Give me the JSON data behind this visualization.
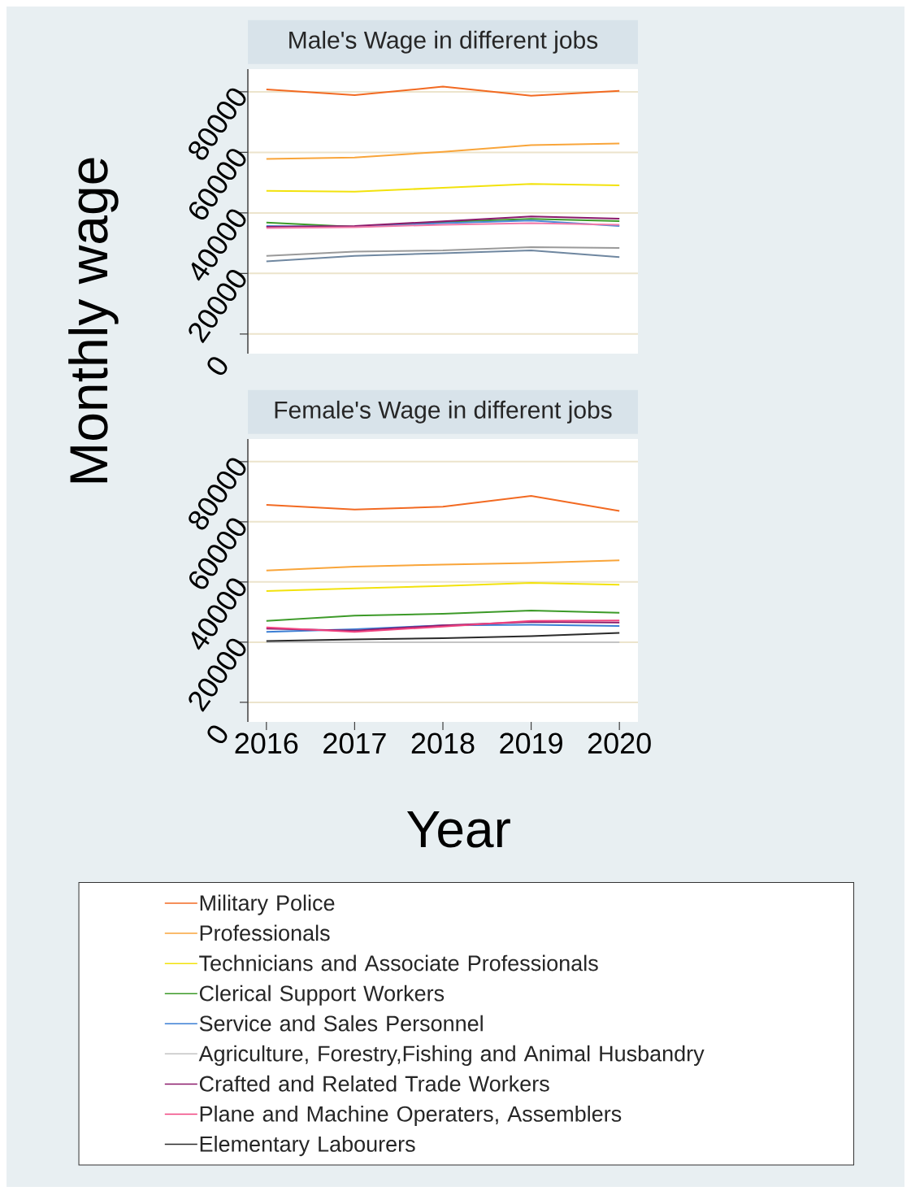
{
  "chart_data": [
    {
      "type": "line",
      "title": "Male's Wage in different jobs",
      "ylabel": "Monthly wage",
      "x": [
        2016,
        2017,
        2018,
        2019,
        2020
      ],
      "xlim": [
        2015.79,
        2020.21
      ],
      "ylim": [
        -6500,
        87500
      ],
      "xticks": [
        2016,
        2017,
        2018,
        2019,
        2020
      ],
      "yticks": [
        0,
        20000,
        40000,
        60000,
        80000
      ],
      "grid": "y",
      "tick_labels": "y",
      "series": [
        {
          "color": "#f26a22",
          "values": [
            80800,
            78900,
            81700,
            78700,
            80300
          ]
        },
        {
          "color": "#f9a53a",
          "values": [
            57800,
            58300,
            60200,
            62400,
            62900
          ]
        },
        {
          "color": "#f2e20c",
          "values": [
            47300,
            47000,
            48300,
            49600,
            49100
          ]
        },
        {
          "color": "#3c9a28",
          "values": [
            36800,
            35400,
            37000,
            38000,
            37300
          ]
        },
        {
          "color": "#4a8ad8",
          "values": [
            35700,
            35400,
            36600,
            37500,
            35700
          ]
        },
        {
          "color": "#6f87a0",
          "values": [
            24000,
            25800,
            26700,
            27600,
            25400
          ]
        },
        {
          "color": "#8b1a6b",
          "values": [
            35400,
            35700,
            37200,
            38800,
            38100
          ]
        },
        {
          "color": "#f27aa8",
          "values": [
            35000,
            35300,
            36100,
            36600,
            36100
          ]
        },
        {
          "color": "#9a9a9a",
          "values": [
            25800,
            27200,
            27600,
            28700,
            28400
          ]
        }
      ]
    },
    {
      "type": "line",
      "title": "Female's Wage in different jobs",
      "xlabel": "Year",
      "x": [
        2016,
        2017,
        2018,
        2019,
        2020
      ],
      "xlim": [
        2015.79,
        2020.21
      ],
      "ylim": [
        -6500,
        87500
      ],
      "xticks": [
        2016,
        2017,
        2018,
        2019,
        2020
      ],
      "yticks": [
        0,
        20000,
        40000,
        60000,
        80000
      ],
      "grid": "y",
      "legend": "bottom",
      "series": [
        {
          "name": "Military Police",
          "color": "#f26a22",
          "values": [
            65600,
            64100,
            65000,
            68600,
            63600
          ]
        },
        {
          "name": "Professionals",
          "color": "#f9a53a",
          "values": [
            43800,
            45100,
            45800,
            46300,
            47200
          ]
        },
        {
          "name": "Technicians and Associate Professionals",
          "color": "#f2e20c",
          "values": [
            37000,
            37900,
            38700,
            39700,
            39100
          ]
        },
        {
          "name": "Clerical Support Workers",
          "color": "#3c9a28",
          "values": [
            27100,
            28800,
            29400,
            30500,
            29800
          ]
        },
        {
          "name": "Service and Sales Personnel",
          "color": "#3b7fd4",
          "values": [
            23400,
            24300,
            25600,
            25800,
            25400
          ]
        },
        {
          "name": "Agriculture, Forestry,Fishing and Animal Husbandry",
          "color": "#c4c4c4",
          "values": [
            20000,
            20000,
            20000,
            20000,
            20000
          ]
        },
        {
          "name": "Crafted and Related Trade Workers",
          "color": "#8b1a6b",
          "values": [
            24500,
            23800,
            25600,
            26700,
            26500
          ]
        },
        {
          "name": "Plane and Machine Operaters, Assemblers",
          "color": "#f0437f",
          "values": [
            24900,
            23400,
            25200,
            27100,
            27200
          ]
        },
        {
          "name": "Elementary Labourers",
          "color": "#2a2a2a",
          "values": [
            20400,
            20900,
            21300,
            22000,
            23100
          ]
        }
      ]
    }
  ]
}
